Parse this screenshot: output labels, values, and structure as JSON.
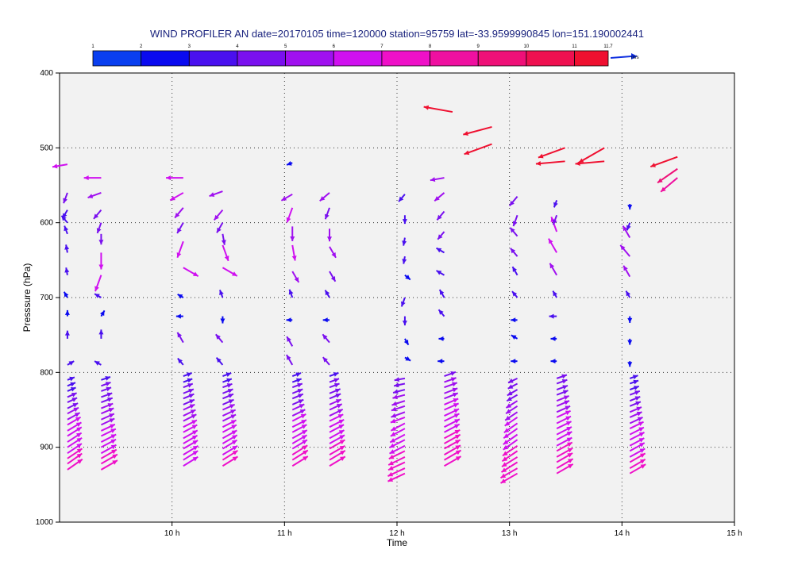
{
  "chart_data": {
    "type": "wind-profile",
    "title": "WIND PROFILER AN date=20170105 time=120000 station=95759 lat=-33.9599990845 lon=151.190002441",
    "xlabel": "Time",
    "ylabel": "Presssure (hPa)",
    "x_range_h": [
      9.0,
      15.0
    ],
    "x_tick_values": [
      10,
      11,
      12,
      13,
      14,
      15
    ],
    "x_tick_labels": [
      "10 h",
      "11 h",
      "12 h",
      "13 h",
      "14 h",
      "15 h"
    ],
    "y_range_hPa": [
      400,
      1000
    ],
    "y_inverted": true,
    "y_tick_values": [
      400,
      500,
      600,
      700,
      800,
      900,
      1000
    ],
    "y_tick_labels": [
      "400",
      "500",
      "600",
      "700",
      "800",
      "900",
      "1000"
    ],
    "grid": true,
    "legend": {
      "position": "top",
      "values": [
        1,
        2,
        3,
        4,
        5,
        6,
        7,
        8,
        9,
        10,
        11,
        11.7
      ],
      "labels": [
        "1",
        "2",
        "3",
        "4",
        "5",
        "6",
        "7",
        "8",
        "9",
        "10",
        "11",
        "11.7"
      ],
      "colors": [
        "#0a3ff0",
        "#0a0af0",
        "#4a10ef",
        "#7a10ef",
        "#a010f0",
        "#d010f0",
        "#ef10c8",
        "#ef10a0",
        "#ef1078",
        "#ef1050",
        "#ef1030"
      ],
      "unit": "m/s"
    },
    "units": "m/s",
    "columns": [
      {
        "time_h": 9.07,
        "pressures": [
          930,
          922,
          915,
          908,
          900,
          893,
          885,
          878,
          870,
          863,
          855,
          848,
          840,
          833,
          825,
          818,
          810,
          790,
          755,
          725,
          700,
          670,
          640,
          615,
          600,
          583,
          560,
          522
        ],
        "speeds": [
          7.2,
          7.0,
          7.0,
          6.8,
          6.8,
          6.6,
          6.6,
          6.4,
          6.0,
          5.6,
          5.0,
          4.6,
          4.2,
          4.0,
          3.6,
          3.4,
          3.0,
          3.0,
          3.2,
          2.4,
          2.6,
          3.0,
          3.2,
          3.4,
          3.6,
          3.8,
          4.4,
          6.0
        ],
        "dirs_deg": [
          55,
          55,
          56,
          56,
          57,
          57,
          58,
          59,
          60,
          61,
          62,
          64,
          65,
          66,
          67,
          68,
          70,
          60,
          0,
          0,
          330,
          350,
          350,
          340,
          320,
          210,
          200,
          260
        ]
      },
      {
        "time_h": 9.37,
        "pressures": [
          930,
          922,
          915,
          908,
          900,
          893,
          885,
          878,
          870,
          863,
          855,
          848,
          840,
          833,
          825,
          818,
          810,
          790,
          755,
          725,
          700,
          670,
          640,
          615,
          600,
          583,
          560,
          540
        ],
        "speeds": [
          7.4,
          7.4,
          7.0,
          6.8,
          6.6,
          6.6,
          6.4,
          6.0,
          5.8,
          5.6,
          5.4,
          5.0,
          4.8,
          4.6,
          4.2,
          4.0,
          3.8,
          3.0,
          3.6,
          2.6,
          3.0,
          6.8,
          6.6,
          4.2,
          4.4,
          4.6,
          5.6,
          6.8
        ],
        "dirs_deg": [
          60,
          60,
          60,
          61,
          62,
          63,
          64,
          65,
          65,
          66,
          67,
          68,
          69,
          70,
          70,
          70,
          72,
          300,
          0,
          30,
          300,
          200,
          180,
          180,
          200,
          220,
          250,
          270
        ]
      },
      {
        "time_h": 10.1,
        "pressures": [
          925,
          917,
          910,
          902,
          895,
          888,
          880,
          873,
          865,
          858,
          850,
          843,
          835,
          828,
          820,
          813,
          805,
          790,
          760,
          725,
          700,
          660,
          625,
          600,
          580,
          560,
          540
        ],
        "speeds": [
          6.8,
          6.8,
          6.8,
          6.6,
          6.4,
          6.4,
          6.2,
          6.0,
          5.8,
          5.4,
          5.0,
          4.8,
          4.6,
          4.4,
          4.0,
          3.8,
          3.6,
          3.4,
          4.6,
          2.8,
          2.6,
          6.8,
          6.8,
          4.8,
          5.2,
          6.0,
          6.8
        ],
        "dirs_deg": [
          58,
          58,
          59,
          60,
          60,
          61,
          62,
          63,
          63,
          64,
          65,
          66,
          67,
          68,
          69,
          70,
          70,
          320,
          330,
          270,
          300,
          120,
          200,
          210,
          220,
          240,
          270
        ]
      },
      {
        "time_h": 10.45,
        "pressures": [
          925,
          917,
          910,
          902,
          895,
          888,
          880,
          873,
          865,
          858,
          850,
          843,
          835,
          828,
          820,
          813,
          805,
          790,
          760,
          725,
          700,
          660,
          630,
          615,
          600,
          583,
          558
        ],
        "speeds": [
          7.0,
          7.0,
          6.8,
          6.6,
          6.6,
          6.4,
          6.2,
          6.0,
          5.8,
          5.6,
          5.2,
          4.8,
          4.6,
          4.4,
          4.0,
          3.8,
          3.6,
          3.8,
          4.2,
          2.8,
          3.2,
          6.6,
          6.6,
          4.4,
          4.6,
          5.2,
          5.6
        ],
        "dirs_deg": [
          58,
          58,
          59,
          59,
          60,
          61,
          62,
          63,
          64,
          65,
          66,
          66,
          67,
          68,
          70,
          70,
          70,
          320,
          320,
          180,
          340,
          120,
          160,
          170,
          210,
          220,
          250
        ]
      },
      {
        "time_h": 11.07,
        "pressures": [
          925,
          917,
          910,
          902,
          895,
          888,
          880,
          873,
          865,
          858,
          850,
          843,
          835,
          828,
          820,
          813,
          805,
          790,
          765,
          730,
          700,
          665,
          630,
          605,
          580,
          562,
          520
        ],
        "speeds": [
          7.2,
          7.2,
          7.0,
          6.8,
          6.6,
          6.6,
          6.4,
          6.2,
          6.0,
          5.6,
          5.2,
          4.8,
          4.6,
          4.4,
          4.2,
          3.8,
          3.6,
          4.6,
          4.4,
          2.4,
          3.4,
          5.0,
          6.2,
          5.8,
          6.2,
          5.0,
          2.4
        ],
        "dirs_deg": [
          58,
          58,
          58,
          59,
          60,
          61,
          62,
          63,
          63,
          64,
          65,
          66,
          67,
          68,
          69,
          70,
          70,
          330,
          330,
          270,
          340,
          150,
          170,
          180,
          200,
          240,
          250
        ]
      },
      {
        "time_h": 11.4,
        "pressures": [
          925,
          917,
          910,
          902,
          895,
          888,
          880,
          873,
          865,
          858,
          850,
          843,
          835,
          828,
          820,
          813,
          805,
          790,
          760,
          730,
          700,
          665,
          632,
          608,
          580,
          560
        ],
        "speeds": [
          7.2,
          7.2,
          7.0,
          7.0,
          6.8,
          6.6,
          6.4,
          6.4,
          6.0,
          5.8,
          5.4,
          5.0,
          4.8,
          4.6,
          4.2,
          4.0,
          3.8,
          4.0,
          4.2,
          2.6,
          3.4,
          4.6,
          5.0,
          5.0,
          4.8,
          5.0
        ],
        "dirs_deg": [
          59,
          59,
          60,
          60,
          61,
          61,
          62,
          63,
          64,
          64,
          65,
          66,
          67,
          68,
          69,
          70,
          70,
          320,
          320,
          270,
          330,
          150,
          150,
          180,
          200,
          230
        ]
      },
      {
        "time_h": 12.07,
        "pressures": [
          935,
          928,
          920,
          913,
          905,
          898,
          890,
          883,
          875,
          868,
          860,
          853,
          845,
          838,
          830,
          823,
          815,
          808,
          780,
          755,
          725,
          700,
          670,
          645,
          620,
          590,
          562
        ],
        "speeds": [
          7.4,
          7.4,
          7.2,
          7.2,
          7.0,
          6.8,
          6.8,
          6.6,
          6.4,
          6.2,
          6.0,
          5.8,
          5.6,
          5.4,
          5.0,
          4.8,
          4.4,
          4.2,
          2.6,
          2.8,
          3.6,
          3.8,
          2.8,
          3.0,
          3.2,
          3.4,
          3.8
        ],
        "dirs_deg": [
          245,
          245,
          245,
          244,
          244,
          243,
          243,
          242,
          242,
          242,
          250,
          250,
          252,
          252,
          255,
          255,
          258,
          260,
          120,
          150,
          180,
          200,
          130,
          190,
          190,
          180,
          220
        ],
        "upper": {
          "pressures": [
            452
          ],
          "speeds": [
            11.5
          ],
          "dirs_deg": [
            280
          ]
        }
      },
      {
        "time_h": 12.42,
        "pressures": [
          925,
          917,
          910,
          902,
          895,
          888,
          880,
          873,
          865,
          858,
          850,
          843,
          835,
          828,
          820,
          813,
          805,
          785,
          755,
          725,
          700,
          670,
          640,
          612,
          585,
          560,
          540
        ],
        "speeds": [
          7.6,
          7.6,
          7.4,
          7.2,
          7.2,
          7.0,
          6.8,
          6.8,
          6.6,
          6.4,
          6.2,
          6.0,
          5.8,
          5.6,
          5.4,
          5.0,
          4.8,
          2.6,
          2.2,
          3.4,
          3.6,
          3.6,
          3.6,
          4.0,
          4.4,
          5.0,
          5.6
        ],
        "dirs_deg": [
          60,
          60,
          60,
          61,
          61,
          62,
          62,
          63,
          64,
          65,
          66,
          67,
          68,
          69,
          70,
          70,
          70,
          270,
          270,
          320,
          330,
          300,
          300,
          220,
          220,
          230,
          260
        ],
        "upper": {
          "pressures": [
            495,
            472
          ],
          "speeds": [
            11.6,
            11.7
          ],
          "dirs_deg": [
            250,
            255
          ]
        }
      },
      {
        "time_h": 13.07,
        "pressures": [
          935,
          928,
          920,
          913,
          905,
          898,
          890,
          883,
          875,
          868,
          860,
          853,
          845,
          838,
          830,
          823,
          815,
          808,
          785,
          755,
          730,
          700,
          670,
          645,
          618,
          590,
          565
        ],
        "speeds": [
          7.6,
          7.6,
          7.4,
          7.2,
          7.2,
          7.0,
          6.8,
          6.8,
          6.6,
          6.4,
          6.0,
          5.8,
          5.4,
          5.2,
          4.8,
          4.6,
          4.2,
          4.0,
          2.6,
          2.8,
          2.6,
          3.2,
          3.8,
          4.2,
          4.4,
          4.6,
          4.8
        ],
        "dirs_deg": [
          240,
          240,
          238,
          238,
          236,
          236,
          235,
          235,
          235,
          235,
          236,
          236,
          237,
          238,
          240,
          240,
          242,
          245,
          270,
          300,
          270,
          320,
          330,
          320,
          320,
          200,
          220
        ],
        "upper": {
          "pressures": [
            500,
            518
          ],
          "speeds": [
            11.2,
            11.5
          ],
          "dirs_deg": [
            250,
            265
          ]
        }
      },
      {
        "time_h": 13.42,
        "pressures": [
          935,
          928,
          920,
          913,
          905,
          898,
          890,
          883,
          875,
          868,
          860,
          853,
          845,
          838,
          830,
          823,
          815,
          808,
          785,
          755,
          725,
          700,
          670,
          640,
          612,
          590,
          570
        ],
        "speeds": [
          7.4,
          7.4,
          7.2,
          7.2,
          7.0,
          6.8,
          6.8,
          6.6,
          6.4,
          6.2,
          6.0,
          5.8,
          5.4,
          5.2,
          4.8,
          4.6,
          4.4,
          4.2,
          2.4,
          2.4,
          3.0,
          3.0,
          5.4,
          6.4,
          6.2,
          4.0,
          3.0
        ],
        "dirs_deg": [
          60,
          60,
          60,
          61,
          61,
          62,
          62,
          63,
          64,
          64,
          65,
          66,
          67,
          68,
          69,
          70,
          70,
          71,
          270,
          270,
          270,
          330,
          330,
          330,
          340,
          200,
          200
        ],
        "upper": {
          "pressures": [
            500,
            518
          ],
          "speeds": [
            11.7,
            11.5
          ],
          "dirs_deg": [
            240,
            265
          ]
        }
      },
      {
        "time_h": 14.07,
        "pressures": [
          935,
          928,
          920,
          913,
          905,
          898,
          890,
          883,
          875,
          868,
          860,
          853,
          845,
          838,
          830,
          823,
          815,
          808,
          785,
          755,
          725,
          700,
          672,
          645,
          620,
          600,
          575
        ],
        "speeds": [
          7.2,
          7.0,
          7.0,
          6.8,
          6.6,
          6.4,
          6.4,
          6.2,
          6.0,
          5.6,
          5.2,
          5.0,
          4.6,
          4.4,
          4.2,
          3.8,
          3.6,
          3.4,
          2.2,
          2.4,
          2.6,
          3.0,
          5.0,
          5.8,
          5.4,
          3.2,
          2.2
        ],
        "dirs_deg": [
          60,
          60,
          60,
          61,
          61,
          62,
          63,
          63,
          64,
          65,
          66,
          67,
          68,
          68,
          69,
          70,
          70,
          70,
          180,
          180,
          180,
          330,
          330,
          320,
          330,
          200,
          180
        ],
        "upper": {
          "pressures": [
            540,
            528,
            512
          ],
          "speeds": [
            8.6,
            9.6,
            11.3
          ],
          "dirs_deg": [
            230,
            235,
            250
          ]
        }
      }
    ]
  }
}
